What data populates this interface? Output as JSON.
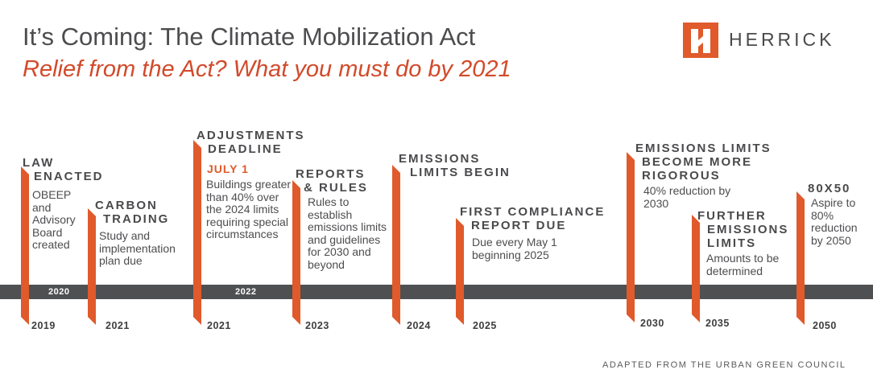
{
  "header": {
    "title": "It’s Coming: The Climate Mobilization Act",
    "subtitle": "Relief from the Act? What you must do by 2021",
    "brand": "HERRICK"
  },
  "colors": {
    "accent": "#e05a2b",
    "subtitle": "#d24a2a",
    "bar": "#4f5052",
    "text": "#4a4a4d"
  },
  "timeline": {
    "bar_years": [
      "2020",
      "2022"
    ],
    "events": [
      {
        "year": "2019",
        "heading": [
          "LAW",
          "ENACTED"
        ],
        "description": "OBEEP and Advisory Board created"
      },
      {
        "year": "2021",
        "heading": [
          "CARBON",
          "TRADING"
        ],
        "description": "Study and implementation plan due"
      },
      {
        "year": "2021",
        "heading": [
          "ADJUSTMENTS",
          "DEADLINE"
        ],
        "highlight": "JULY 1",
        "description": "Buildings greater than 40% over the 2024 limits requiring special circumstances"
      },
      {
        "year": "2023",
        "heading": [
          "REPORTS",
          "& RULES"
        ],
        "description": "Rules to establish emissions limits and guidelines for 2030 and beyond"
      },
      {
        "year": "2024",
        "heading": [
          "EMISSIONS",
          "LIMITS BEGIN"
        ],
        "description": ""
      },
      {
        "year": "2025",
        "heading": [
          "FIRST COMPLIANCE",
          "REPORT DUE"
        ],
        "description": "Due every May 1 beginning 2025"
      },
      {
        "year": "2030",
        "heading": [
          "EMISSIONS LIMITS",
          "BECOME MORE",
          "RIGOROUS"
        ],
        "description": "40% reduction by 2030"
      },
      {
        "year": "2035",
        "heading": [
          "FURTHER",
          "EMISSIONS",
          "LIMITS"
        ],
        "description": "Amounts to be determined"
      },
      {
        "year": "2050",
        "heading": [
          "80X50"
        ],
        "description": "Aspire to 80% reduction by 2050"
      }
    ]
  },
  "footer": {
    "credit": "ADAPTED FROM THE URBAN GREEN COUNCIL"
  }
}
